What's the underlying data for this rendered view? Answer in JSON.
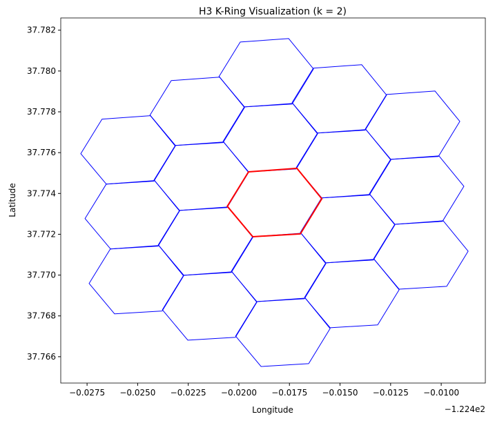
{
  "chart_data": {
    "type": "polygon",
    "title": "H3 K-Ring Visualization (k = 2)",
    "x_label": "Longitude",
    "y_label": "Latitude",
    "x_offset_label": "−1.224e2",
    "xlim": [
      -0.0288,
      -0.00782
    ],
    "ylim": [
      37.76471,
      37.7826
    ],
    "xticks": [
      {
        "value": -0.0275,
        "label": "−0.0275"
      },
      {
        "value": -0.025,
        "label": "−0.0250"
      },
      {
        "value": -0.0225,
        "label": "−0.0225"
      },
      {
        "value": -0.02,
        "label": "−0.0200"
      },
      {
        "value": -0.0175,
        "label": "−0.0175"
      },
      {
        "value": -0.015,
        "label": "−0.0150"
      },
      {
        "value": -0.0125,
        "label": "−0.0125"
      },
      {
        "value": -0.01,
        "label": "−0.0100"
      }
    ],
    "yticks": [
      37.766,
      37.768,
      {
        "value": 37.77,
        "label": "37.770"
      },
      37.772,
      37.774,
      37.776,
      37.778,
      {
        "value": 37.78,
        "label": "37.780"
      },
      37.782
    ],
    "series": [
      {
        "color": "#0000ff",
        "x": [
          -0.02676,
          -0.02437,
          -0.02314,
          -0.0242,
          -0.02655,
          -0.02781
        ],
        "y": [
          37.77764,
          37.77781,
          37.77632,
          37.7746,
          37.77446,
          37.77595
        ]
      },
      {
        "color": "#0000ff",
        "x": [
          -0.02655,
          -0.02416,
          -0.02293,
          -0.02399,
          -0.02634,
          -0.0276
        ],
        "y": [
          37.77446,
          37.77463,
          37.77314,
          37.77142,
          37.77128,
          37.77277
        ]
      },
      {
        "color": "#0000ff",
        "x": [
          -0.02635,
          -0.02396,
          -0.02273,
          -0.02379,
          -0.02614,
          -0.0274
        ],
        "y": [
          37.77128,
          37.77145,
          37.76996,
          37.76824,
          37.7681,
          37.76959
        ]
      },
      {
        "color": "#0000ff",
        "x": [
          -0.02334,
          -0.02095,
          -0.01972,
          -0.02078,
          -0.02313,
          -0.02439
        ],
        "y": [
          37.77953,
          37.7797,
          37.77821,
          37.77649,
          37.77635,
          37.77784
        ]
      },
      {
        "color": "#0000ff",
        "x": [
          -0.02314,
          -0.02075,
          -0.01952,
          -0.02058,
          -0.02293,
          -0.02419
        ],
        "y": [
          37.77635,
          37.77652,
          37.77503,
          37.77331,
          37.77317,
          37.77466
        ]
      },
      {
        "color": "#0000ff",
        "x": [
          -0.02293,
          -0.02054,
          -0.01931,
          -0.02037,
          -0.02272,
          -0.02398
        ],
        "y": [
          37.77317,
          37.77334,
          37.77185,
          37.77013,
          37.76999,
          37.77148
        ]
      },
      {
        "color": "#0000ff",
        "x": [
          -0.02273,
          -0.02034,
          -0.01911,
          -0.02017,
          -0.02252,
          -0.02378
        ],
        "y": [
          37.76999,
          37.77016,
          37.76867,
          37.76695,
          37.76681,
          37.7683
        ]
      },
      {
        "color": "#0000ff",
        "x": [
          -0.01993,
          -0.01754,
          -0.01631,
          -0.01737,
          -0.01972,
          -0.02098
        ],
        "y": [
          37.78142,
          37.78159,
          37.7801,
          37.77838,
          37.77824,
          37.77973
        ]
      },
      {
        "color": "#0000ff",
        "x": [
          -0.01973,
          -0.01734,
          -0.01611,
          -0.01717,
          -0.01952,
          -0.02078
        ],
        "y": [
          37.77824,
          37.77841,
          37.77692,
          37.7752,
          37.77506,
          37.77655
        ]
      },
      {
        "color": "#0000ff",
        "x": [
          -0.01932,
          -0.01693,
          -0.0157,
          -0.01676,
          -0.01911,
          -0.02037
        ],
        "y": [
          37.77188,
          37.77205,
          37.77056,
          37.76884,
          37.7687,
          37.77019
        ]
      },
      {
        "color": "#0000ff",
        "x": [
          -0.01911,
          -0.01672,
          -0.01549,
          -0.01655,
          -0.0189,
          -0.02016
        ],
        "y": [
          37.7687,
          37.76887,
          37.76738,
          37.76566,
          37.76552,
          37.76701
        ]
      },
      {
        "color": "#0000ff",
        "x": [
          -0.01632,
          -0.01393,
          -0.0127,
          -0.01376,
          -0.01611,
          -0.01737
        ],
        "y": [
          37.78014,
          37.78031,
          37.77882,
          37.7771,
          37.77696,
          37.77845
        ]
      },
      {
        "color": "#0000ff",
        "x": [
          -0.01611,
          -0.01372,
          -0.01249,
          -0.01355,
          -0.0159,
          -0.01716
        ],
        "y": [
          37.77696,
          37.77713,
          37.77564,
          37.77392,
          37.77378,
          37.77527
        ]
      },
      {
        "color": "#0000ff",
        "x": [
          -0.01591,
          -0.01352,
          -0.01229,
          -0.01335,
          -0.0157,
          -0.01696
        ],
        "y": [
          37.77378,
          37.77395,
          37.77246,
          37.77074,
          37.7706,
          37.77209
        ]
      },
      {
        "color": "#0000ff",
        "x": [
          -0.0157,
          -0.01331,
          -0.01208,
          -0.01314,
          -0.01549,
          -0.01675
        ],
        "y": [
          37.7706,
          37.77077,
          37.76928,
          37.76756,
          37.76742,
          37.76891
        ]
      },
      {
        "color": "#0000ff",
        "x": [
          -0.0127,
          -0.01031,
          -0.00908,
          -0.01014,
          -0.01249,
          -0.01375
        ],
        "y": [
          37.77885,
          37.77902,
          37.77753,
          37.77581,
          37.77567,
          37.77716
        ]
      },
      {
        "color": "#0000ff",
        "x": [
          -0.0125,
          -0.01011,
          -0.00888,
          -0.00994,
          -0.01229,
          -0.01355
        ],
        "y": [
          37.77567,
          37.77584,
          37.77435,
          37.77263,
          37.77249,
          37.77398
        ]
      },
      {
        "color": "#0000ff",
        "x": [
          -0.01229,
          -0.0099,
          -0.00867,
          -0.00973,
          -0.01208,
          -0.01334
        ],
        "y": [
          37.77249,
          37.77266,
          37.77117,
          37.76945,
          37.76931,
          37.7708
        ]
      },
      {
        "color": "#ff0000",
        "x": [
          -0.01952,
          -0.01713,
          -0.0159,
          -0.01696,
          -0.01931,
          -0.02057
        ],
        "y": [
          37.77506,
          37.77523,
          37.77374,
          37.77202,
          37.77188,
          37.77337
        ]
      }
    ]
  }
}
